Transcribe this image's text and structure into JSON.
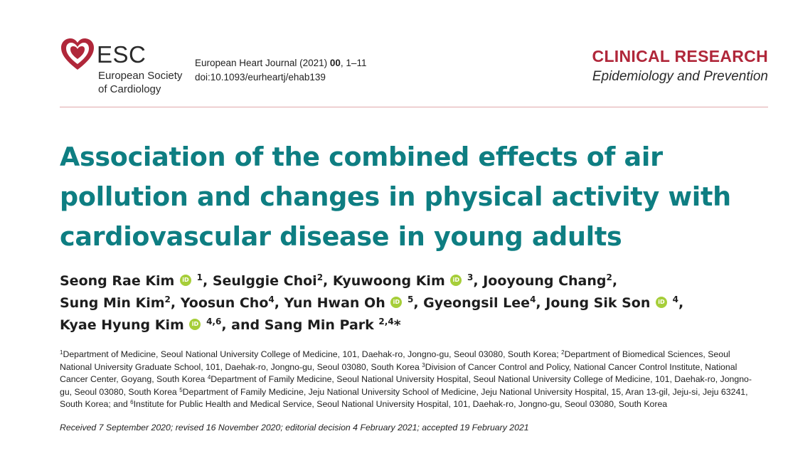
{
  "logo": {
    "abbr": "ESC",
    "line1": "European Society",
    "line2": "of Cardiology",
    "brand_color": "#b0273a"
  },
  "journal": {
    "name": "European Heart Journal (2021)",
    "volume": "00",
    "pages": ", 1–11",
    "doi": "doi:10.1093/eurheartj/ehab139"
  },
  "category": {
    "section": "CLINICAL RESEARCH",
    "subsection": "Epidemiology and Prevention"
  },
  "title": {
    "line1": "Association of the combined effects of air",
    "line2": "pollution and changes in physical activity with",
    "line3": "cardiovascular disease in young adults",
    "color": "#0e7e82"
  },
  "authors": [
    {
      "name": "Seong Rae Kim",
      "orcid": true,
      "sup": "1",
      "sep": ", "
    },
    {
      "name": "Seulggie Choi",
      "orcid": false,
      "sup": "2",
      "sep": ", "
    },
    {
      "name": "Kyuwoong Kim",
      "orcid": true,
      "sup": "3",
      "sep": ", "
    },
    {
      "name": "Jooyoung Chang",
      "orcid": false,
      "sup": "2",
      "sep": ","
    },
    {
      "name": "Sung Min Kim",
      "orcid": false,
      "sup": "2",
      "sep": ", "
    },
    {
      "name": "Yoosun Cho",
      "orcid": false,
      "sup": "4",
      "sep": ", "
    },
    {
      "name": "Yun Hwan Oh",
      "orcid": true,
      "sup": "5",
      "sep": ", "
    },
    {
      "name": "Gyeongsil Lee",
      "orcid": false,
      "sup": "4",
      "sep": ", "
    },
    {
      "name": "Joung Sik Son",
      "orcid": true,
      "sup": "4",
      "sep": ","
    },
    {
      "name": "Kyae Hyung Kim",
      "orcid": true,
      "sup": "4,6",
      "sep": ", and "
    },
    {
      "name": "Sang Min Park",
      "orcid": false,
      "sup": "2,4",
      "sep": "*"
    }
  ],
  "affiliations": [
    {
      "sup": "1",
      "text": "Department of Medicine, Seoul National University College of Medicine, 101, Daehak-ro, Jongno-gu, Seoul 03080, South Korea; "
    },
    {
      "sup": "2",
      "text": "Department of Biomedical Sciences, Seoul National University Graduate School, 101, Daehak-ro, Jongno-gu, Seoul 03080, South Korea "
    },
    {
      "sup": "3",
      "text": "Division of Cancer Control and Policy, National Cancer Control Institute, National Cancer Center, Goyang, South Korea "
    },
    {
      "sup": "4",
      "text": "Department of Family Medicine, Seoul National University Hospital, Seoul National University College of Medicine, 101, Daehak-ro, Jongno-gu, Seoul 03080, South Korea "
    },
    {
      "sup": "5",
      "text": "Department of Family Medicine, Jeju National University School of Medicine, Jeju National University Hospital, 15, Aran 13-gil, Jeju-si, Jeju 63241, South Korea;  and "
    },
    {
      "sup": "6",
      "text": "Institute for Public Health and Medical Service, Seoul National University Hospital, 101, Daehak-ro, Jongno-gu, Seoul 03080, South Korea"
    }
  ],
  "received": "Received 7 September 2020; revised 16 November 2020; editorial decision 4 February 2021; accepted 19 February 2021"
}
